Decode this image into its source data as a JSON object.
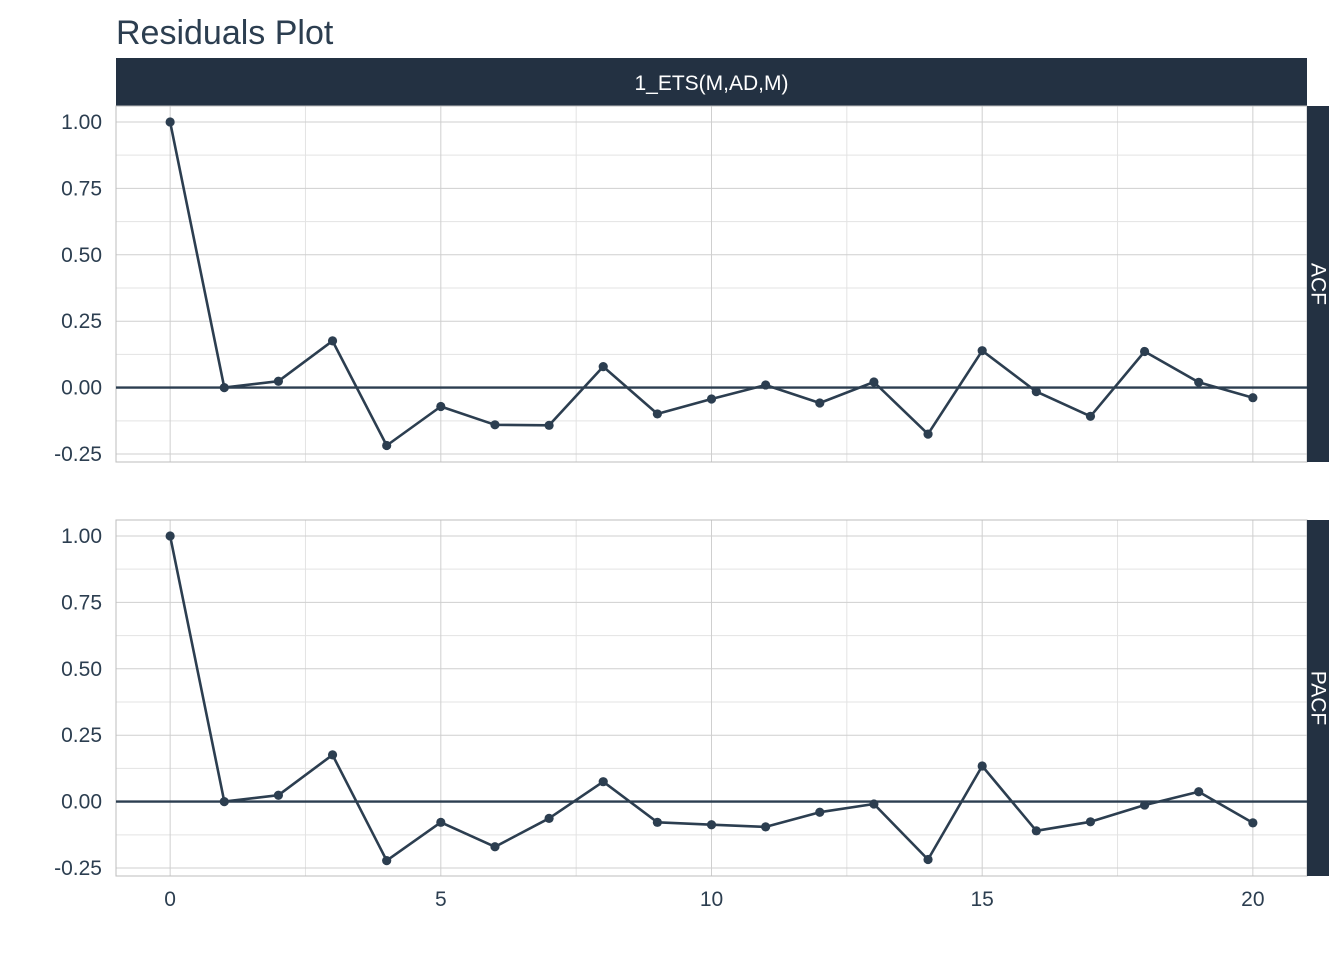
{
  "chart_data": {
    "type": "line",
    "title": "Residuals Plot",
    "facet_column": "1_ETS(M,AD,M)",
    "xlim": [
      -1,
      21
    ],
    "x_ticks": [
      0,
      5,
      10,
      15,
      20
    ],
    "y_ticks": [
      -0.25,
      0,
      0.25,
      0.5,
      0.75,
      1
    ],
    "y_tick_labels": [
      "-0.25",
      "0.00",
      "0.25",
      "0.50",
      "0.75",
      "1.00"
    ],
    "ylim": [
      -0.28,
      1.06
    ],
    "grid": true,
    "series_color": "#2c3e50",
    "strip_color": "#233142",
    "panels": [
      {
        "name": "ACF",
        "x": [
          0,
          1,
          2,
          3,
          4,
          5,
          6,
          7,
          8,
          9,
          10,
          11,
          12,
          13,
          14,
          15,
          16,
          17,
          18,
          19,
          20
        ],
        "values": [
          1.0,
          0.0,
          0.024,
          0.176,
          -0.218,
          -0.071,
          -0.14,
          -0.142,
          0.079,
          -0.099,
          -0.043,
          0.01,
          -0.058,
          0.021,
          -0.175,
          0.139,
          -0.015,
          -0.108,
          0.136,
          0.02,
          -0.038
        ]
      },
      {
        "name": "PACF",
        "x": [
          0,
          1,
          2,
          3,
          4,
          5,
          6,
          7,
          8,
          9,
          10,
          11,
          12,
          13,
          14,
          15,
          16,
          17,
          18,
          19,
          20
        ],
        "values": [
          1.0,
          0.0,
          0.024,
          0.176,
          -0.222,
          -0.078,
          -0.17,
          -0.063,
          0.075,
          -0.078,
          -0.087,
          -0.095,
          -0.04,
          -0.009,
          -0.218,
          0.134,
          -0.11,
          -0.076,
          -0.013,
          0.037,
          -0.08
        ]
      }
    ]
  }
}
